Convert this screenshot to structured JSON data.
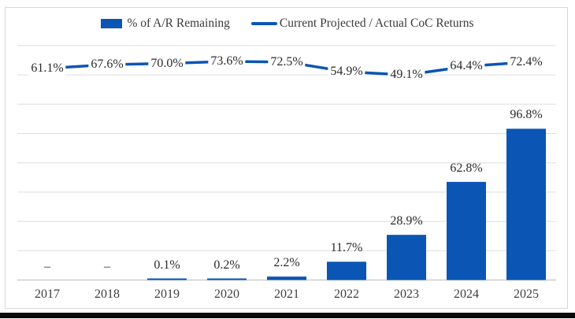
{
  "legend": [
    {
      "label": "% of A/R Remaining",
      "swatch": "bar"
    },
    {
      "label": "Current Projected / Actual CoC Returns",
      "swatch": "line"
    }
  ],
  "colors": {
    "series_blue": "#0b55b5",
    "gridline": "#dedede",
    "axis_line": "#c6c6c6",
    "value_text": "#2b2b2b",
    "axis_text": "#3e3e3e",
    "frame_border": "#d7d7d7",
    "bottom_strip": "#0a0a0a"
  },
  "chart_data": {
    "type": "bar",
    "subtype": "bar-with-line-overlay",
    "categories": [
      "2017",
      "2018",
      "2019",
      "2020",
      "2021",
      "2022",
      "2023",
      "2024",
      "2025"
    ],
    "series": [
      {
        "name": "% of A/R Remaining",
        "type": "bar",
        "axis": "primary",
        "values": [
          null,
          null,
          0.1,
          0.2,
          2.2,
          11.7,
          28.9,
          62.8,
          96.8
        ],
        "labels": [
          "–",
          "–",
          "0.1%",
          "0.2%",
          "2.2%",
          "11.7%",
          "28.9%",
          "62.8%",
          "96.8%"
        ]
      },
      {
        "name": "Current Projected / Actual CoC Returns",
        "type": "line",
        "axis": "secondary",
        "values": [
          61.1,
          67.6,
          70.0,
          73.6,
          72.5,
          54.9,
          49.1,
          64.4,
          72.4
        ],
        "labels": [
          "61.1%",
          "67.6%",
          "70.0%",
          "73.6%",
          "72.5%",
          "54.9%",
          "49.1%",
          "64.4%",
          "72.4%"
        ]
      }
    ],
    "title": "",
    "xlabel": "",
    "ylabel": "",
    "primary_axis": {
      "min": 0,
      "implied_max": 150,
      "tick_labels_visible": false
    },
    "secondary_axis": {
      "tick_labels_visible": false
    },
    "grid": true,
    "gridline_count": 9,
    "legend_position": "top"
  }
}
